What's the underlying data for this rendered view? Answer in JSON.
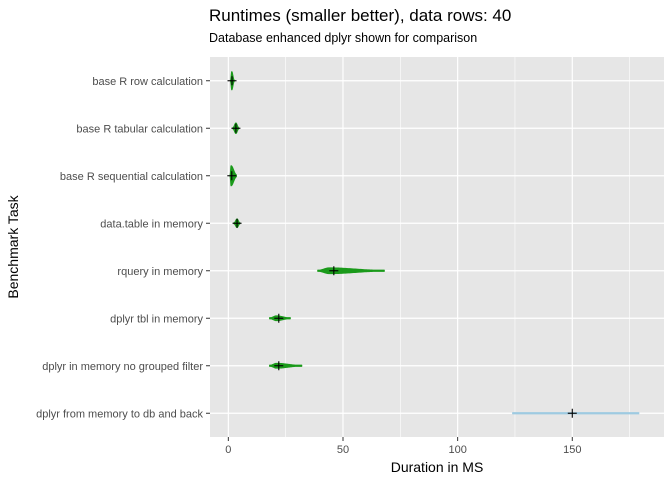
{
  "chart_data": {
    "type": "violin",
    "title": "Runtimes (smaller better), data rows: 40",
    "subtitle": "Database enhanced dplyr shown for comparison",
    "xlabel": "Duration in MS",
    "ylabel": "Benchmark Task",
    "xlim": [
      -8,
      190
    ],
    "x_ticks": [
      0,
      50,
      100,
      150
    ],
    "grid": true,
    "background": "#e6e6e6",
    "grid_color": "#ffffff",
    "categories": [
      "base R row calculation",
      "base R tabular calculation",
      "base R sequential calculation",
      "data.table in memory",
      "rquery in memory",
      "dplyr tbl in memory",
      "dplyr in memory no grouped filter",
      "dplyr from memory to db and back"
    ],
    "series": [
      {
        "task": "base R row calculation",
        "min": 1.0,
        "max": 2.5,
        "mode": 1.5,
        "center": 1.6,
        "width": 0.38,
        "color": "#1a9a1a"
      },
      {
        "task": "base R tabular calculation",
        "min": 2.0,
        "max": 4.5,
        "mode": 3.3,
        "center": 3.3,
        "width": 0.22,
        "color": "#1a9a1a"
      },
      {
        "task": "base R sequential calculation",
        "min": 0.8,
        "max": 3.5,
        "mode": 1.2,
        "center": 1.5,
        "width": 0.42,
        "color": "#1a9a1a"
      },
      {
        "task": "data.table in memory",
        "min": 2.5,
        "max": 5.0,
        "mode": 3.8,
        "center": 3.8,
        "width": 0.18,
        "color": "#1a9a1a"
      },
      {
        "task": "rquery in memory",
        "min": 39,
        "max": 68,
        "mode": 44,
        "center": 46,
        "width": 0.12,
        "color": "#1a9a1a"
      },
      {
        "task": "dplyr tbl in memory",
        "min": 18,
        "max": 27,
        "mode": 21,
        "center": 22,
        "width": 0.1,
        "color": "#1a9a1a"
      },
      {
        "task": "dplyr in memory no grouped filter",
        "min": 18,
        "max": 32,
        "mode": 21,
        "center": 22,
        "width": 0.1,
        "color": "#1a9a1a"
      },
      {
        "task": "dplyr from memory to db and back",
        "min": 124,
        "max": 179,
        "mode": 150,
        "center": 150,
        "width": 0.02,
        "color": "#9ecae1"
      }
    ]
  }
}
